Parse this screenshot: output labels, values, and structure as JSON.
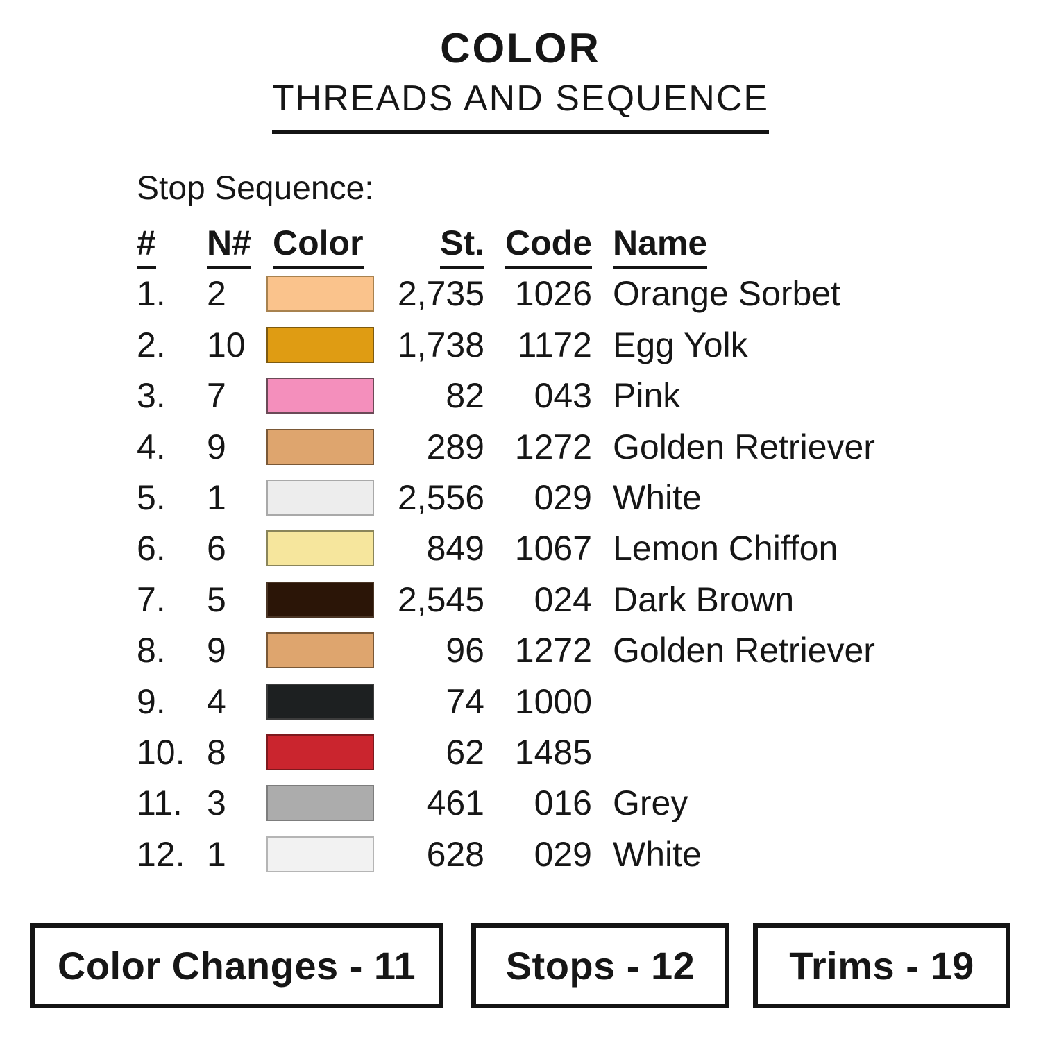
{
  "page": {
    "background": "#ffffff"
  },
  "title": {
    "main": "COLOR",
    "sub": "THREADS AND SEQUENCE"
  },
  "section": {
    "label": "Stop Sequence:"
  },
  "table": {
    "headers": {
      "num": "#",
      "needle": "N#",
      "color": "Color",
      "stitches": "St.",
      "code": "Code",
      "name": "Name"
    },
    "rows": [
      {
        "num": "1.",
        "needle": "2",
        "swatch": "#FAC38C",
        "swatch_border": "#A8824F",
        "stitches": "2,735",
        "code": "1026",
        "name": "Orange Sorbet"
      },
      {
        "num": "2.",
        "needle": "10",
        "swatch": "#DF9C13",
        "swatch_border": "#7D5A10",
        "stitches": "1,738",
        "code": "1172",
        "name": "Egg Yolk"
      },
      {
        "num": "3.",
        "needle": "7",
        "swatch": "#F48FBC",
        "swatch_border": "#6B4A57",
        "stitches": "82",
        "code": "043",
        "name": "Pink"
      },
      {
        "num": "4.",
        "needle": "9",
        "swatch": "#DEA56E",
        "swatch_border": "#7A5836",
        "stitches": "289",
        "code": "1272",
        "name": "Golden Retriever"
      },
      {
        "num": "5.",
        "needle": "1",
        "swatch": "#EDEDED",
        "swatch_border": "#A9A9A9",
        "stitches": "2,556",
        "code": "029",
        "name": "White"
      },
      {
        "num": "6.",
        "needle": "6",
        "swatch": "#F6E69D",
        "swatch_border": "#8A855A",
        "stitches": "849",
        "code": "1067",
        "name": "Lemon Chiffon"
      },
      {
        "num": "7.",
        "needle": "5",
        "swatch": "#2B1507",
        "swatch_border": "#4A3525",
        "stitches": "2,545",
        "code": "024",
        "name": "Dark Brown"
      },
      {
        "num": "8.",
        "needle": "9",
        "swatch": "#DEA56E",
        "swatch_border": "#7A5836",
        "stitches": "96",
        "code": "1272",
        "name": "Golden Retriever"
      },
      {
        "num": "9.",
        "needle": "4",
        "swatch": "#1D2021",
        "swatch_border": "#3C3C3C",
        "stitches": "74",
        "code": "1000",
        "name": ""
      },
      {
        "num": "10.",
        "needle": "8",
        "swatch": "#CA252E",
        "swatch_border": "#7E191E",
        "stitches": "62",
        "code": "1485",
        "name": ""
      },
      {
        "num": "11.",
        "needle": "3",
        "swatch": "#ACACAC",
        "swatch_border": "#7D7D7D",
        "stitches": "461",
        "code": "016",
        "name": "Grey"
      },
      {
        "num": "12.",
        "needle": "1",
        "swatch": "#F2F2F2",
        "swatch_border": "#B5B5B5",
        "stitches": "628",
        "code": "029",
        "name": "White"
      }
    ]
  },
  "footer": {
    "boxes": [
      {
        "label": "Color Changes - 11"
      },
      {
        "label": "Stops - 12"
      },
      {
        "label": "Trims - 19"
      }
    ]
  }
}
